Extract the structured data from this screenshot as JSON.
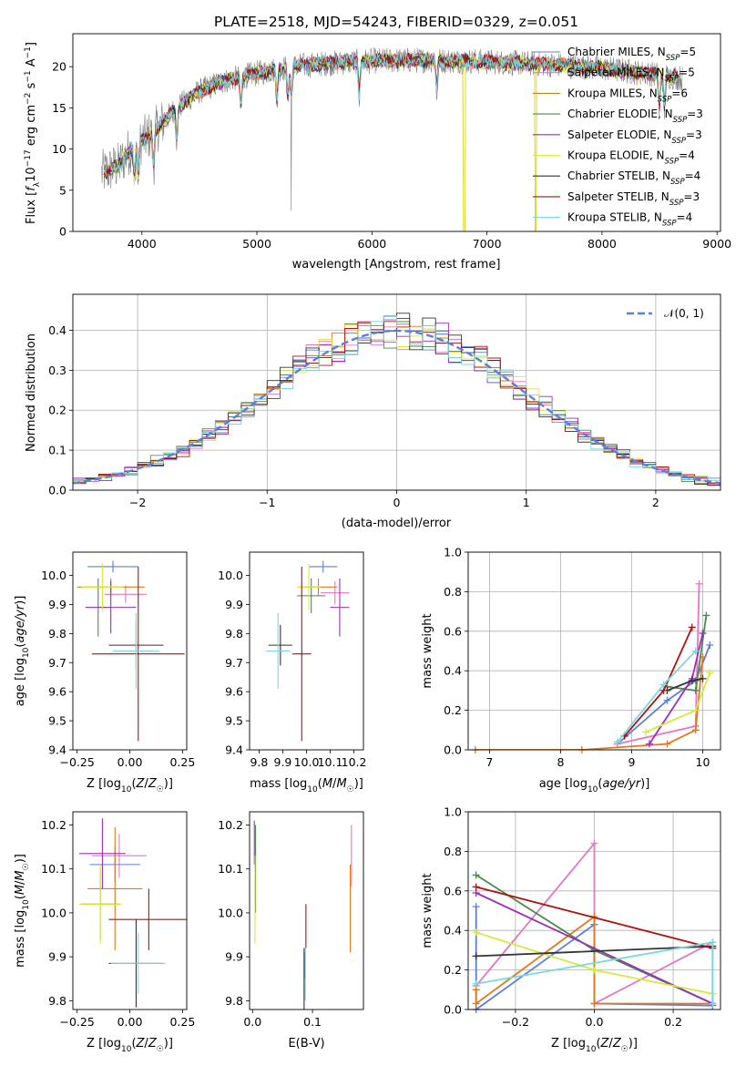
{
  "figure": {
    "title": "PLATE=2518, MJD=54243, FIBERID=0329, z=0.051"
  },
  "models": [
    {
      "name": "Chabrier MILES",
      "nssp": "5",
      "color": "#5b7fdc"
    },
    {
      "name": "Salpeter MILES",
      "nssp": "5",
      "color": "#e377c2"
    },
    {
      "name": "Kroupa MILES",
      "nssp": "6",
      "color": "#e3771c"
    },
    {
      "name": "Chabrier ELODIE",
      "nssp": "3",
      "color": "#4b8a4b"
    },
    {
      "name": "Salpeter ELODIE",
      "nssp": "3",
      "color": "#9b2fb8"
    },
    {
      "name": "Kroupa ELODIE",
      "nssp": "4",
      "color": "#d4ea3c"
    },
    {
      "name": "Chabrier STELIB",
      "nssp": "4",
      "color": "#333333"
    },
    {
      "name": "Salpeter STELIB",
      "nssp": "3",
      "color": "#b01010"
    },
    {
      "name": "Kroupa STELIB",
      "nssp": "4",
      "color": "#7ad8dc"
    }
  ],
  "chart_data": [
    {
      "id": "spectrum",
      "type": "line",
      "xlabel": "wavelength [Angstrom, rest frame]",
      "ylabel": "Flux [f_λ 10^-17 erg cm^-2 s^-1 A^-1]",
      "xlim": [
        3400,
        9030
      ],
      "ylim": [
        0,
        24
      ],
      "xticks": [
        4000,
        5000,
        6000,
        7000,
        8000,
        9000
      ],
      "yticks": [
        0,
        5,
        10,
        15,
        20
      ],
      "continuum": [
        [
          3650,
          7
        ],
        [
          3800,
          8
        ],
        [
          3900,
          10
        ],
        [
          4000,
          11
        ],
        [
          4100,
          12
        ],
        [
          4200,
          13.5
        ],
        [
          4300,
          15
        ],
        [
          4400,
          16
        ],
        [
          4500,
          17
        ],
        [
          4700,
          18.2
        ],
        [
          5000,
          19.2
        ],
        [
          5300,
          20
        ],
        [
          5600,
          20.4
        ],
        [
          6000,
          20.7
        ],
        [
          6500,
          20.8
        ],
        [
          7000,
          20.6
        ],
        [
          7500,
          20.3
        ],
        [
          8000,
          19.8
        ],
        [
          8500,
          19
        ],
        [
          8700,
          18.6
        ]
      ],
      "absorption_lines": [
        3934,
        3969,
        4102,
        4304,
        4861,
        5175,
        5270,
        5300,
        5890,
        6563,
        8498,
        8542
      ],
      "data_dropouts": [
        {
          "start": 6795,
          "end": 6810
        },
        {
          "start": 7420,
          "end": 7430
        }
      ],
      "grid": false
    },
    {
      "id": "residuals",
      "type": "histogram",
      "xlabel": "(data-model)/error",
      "ylabel": "Normed distribution",
      "xlim": [
        -2.5,
        2.5
      ],
      "ylim": [
        0,
        0.49
      ],
      "xticks": [
        -2,
        -1,
        0,
        1,
        2
      ],
      "yticks": [
        0.0,
        0.1,
        0.2,
        0.3,
        0.4
      ],
      "bin_width": 0.1,
      "reference_curve": {
        "label": "𝒩(0, 1)",
        "mean": 0,
        "sigma": 1,
        "color": "#5b7fdc"
      },
      "legend": "top-right",
      "grid": true
    },
    {
      "id": "age-vs-z",
      "type": "errorbar",
      "xlabel": "Z [log10(Z/Z☉)]",
      "ylabel": "age [log10(age/yr)]",
      "xlim": [
        -0.27,
        0.27
      ],
      "ylim": [
        9.4,
        10.08
      ],
      "xticks": [
        -0.25,
        0,
        0.25
      ],
      "xtick_labels": [
        "−0.25",
        "0.00",
        "0.25"
      ],
      "yticks": [
        9.4,
        9.5,
        9.6,
        9.7,
        9.8,
        9.9,
        10.0
      ],
      "grid": false,
      "points": [
        {
          "model": 0,
          "x": -0.08,
          "xerr": 0.12,
          "y": 10.03,
          "yerr": 0.02
        },
        {
          "model": 1,
          "x": -0.02,
          "xerr": 0.1,
          "y": 9.935,
          "yerr": 0.03
        },
        {
          "model": 2,
          "x": -0.09,
          "xerr": 0.16,
          "y": 9.96,
          "yerr": 0.03
        },
        {
          "model": 3,
          "x": -0.15,
          "xerr": 0.06,
          "y": 9.89,
          "yerr": 0.1
        },
        {
          "model": 4,
          "x": -0.09,
          "xerr": 0.12,
          "y": 9.89,
          "yerr": 0.09
        },
        {
          "model": 5,
          "x": -0.13,
          "xerr": 0.1,
          "y": 9.96,
          "yerr": 0.08
        },
        {
          "model": 6,
          "x": 0.03,
          "xerr": 0.13,
          "y": 9.76,
          "yerr": 0.08
        },
        {
          "model": 7,
          "x": 0.04,
          "xerr": 0.22,
          "y": 9.73,
          "yerr": 0.3
        },
        {
          "model": 8,
          "x": 0.03,
          "xerr": 0.11,
          "y": 9.74,
          "yerr": 0.13
        }
      ]
    },
    {
      "id": "age-vs-mass",
      "type": "errorbar",
      "xlabel": "mass [log10(M/M☉)]",
      "xlim": [
        9.76,
        10.24
      ],
      "ylim": [
        9.4,
        10.08
      ],
      "xticks": [
        9.8,
        9.9,
        10.0,
        10.1,
        10.2
      ],
      "yticks": [
        9.4,
        9.5,
        9.6,
        9.7,
        9.8,
        9.9,
        10.0
      ],
      "grid": false,
      "points": [
        {
          "model": 0,
          "x": 10.07,
          "xerr": 0.06,
          "y": 10.03,
          "yerr": 0.02
        },
        {
          "model": 1,
          "x": 10.12,
          "xerr": 0.06,
          "y": 9.94,
          "yerr": 0.04
        },
        {
          "model": 2,
          "x": 10.05,
          "xerr": 0.08,
          "y": 9.96,
          "yerr": 0.03
        },
        {
          "model": 3,
          "x": 10.02,
          "xerr": 0.06,
          "y": 9.93,
          "yerr": 0.06
        },
        {
          "model": 4,
          "x": 10.14,
          "xerr": 0.04,
          "y": 9.89,
          "yerr": 0.1
        },
        {
          "model": 5,
          "x": 10.01,
          "xerr": 0.05,
          "y": 9.96,
          "yerr": 0.08
        },
        {
          "model": 6,
          "x": 9.89,
          "xerr": 0.05,
          "y": 9.76,
          "yerr": 0.07
        },
        {
          "model": 7,
          "x": 9.98,
          "xerr": 0.04,
          "y": 9.73,
          "yerr": 0.3
        },
        {
          "model": 8,
          "x": 9.88,
          "xerr": 0.05,
          "y": 9.74,
          "yerr": 0.13
        }
      ]
    },
    {
      "id": "weight-vs-age",
      "type": "line",
      "xlabel": "age [log10(age/yr)]",
      "ylabel": "mass weight",
      "xlim": [
        6.7,
        10.25
      ],
      "ylim": [
        0,
        1.0
      ],
      "xticks": [
        7,
        8,
        9,
        10
      ],
      "yticks": [
        0.0,
        0.2,
        0.4,
        0.6,
        0.8,
        1.0
      ],
      "grid": true,
      "series": [
        {
          "model": 0,
          "x": [
            8.8,
            9.5,
            9.9,
            10.1
          ],
          "y": [
            0.03,
            0.25,
            0.35,
            0.53
          ]
        },
        {
          "model": 1,
          "x": [
            8.8,
            9.9,
            9.95
          ],
          "y": [
            0.03,
            0.12,
            0.84
          ]
        },
        {
          "model": 2,
          "x": [
            6.8,
            8.3,
            9.5,
            9.9,
            10.0
          ],
          "y": [
            0.0,
            0.0,
            0.03,
            0.1,
            0.47
          ]
        },
        {
          "model": 3,
          "x": [
            9.5,
            9.9,
            10.05
          ],
          "y": [
            0.32,
            0.3,
            0.68
          ]
        },
        {
          "model": 4,
          "x": [
            9.25,
            9.85,
            10.0
          ],
          "y": [
            0.03,
            0.36,
            0.59
          ]
        },
        {
          "model": 5,
          "x": [
            9.2,
            9.9,
            10.1
          ],
          "y": [
            0.09,
            0.2,
            0.39
          ]
        },
        {
          "model": 6,
          "x": [
            9.5,
            9.85,
            10.0
          ],
          "y": [
            0.3,
            0.35,
            0.36
          ]
        },
        {
          "model": 7,
          "x": [
            8.9,
            9.45,
            9.85
          ],
          "y": [
            0.07,
            0.3,
            0.62
          ]
        },
        {
          "model": 8,
          "x": [
            8.8,
            9.45,
            9.9
          ],
          "y": [
            0.04,
            0.33,
            0.5
          ]
        }
      ]
    },
    {
      "id": "mass-vs-z",
      "type": "errorbar",
      "xlabel": "Z [log10(Z/Z☉)]",
      "ylabel": "mass [log10(M/M☉)]",
      "xlim": [
        -0.27,
        0.27
      ],
      "ylim": [
        9.78,
        10.23
      ],
      "xticks": [
        -0.25,
        0,
        0.25
      ],
      "xtick_labels": [
        "−0.25",
        "0.00",
        "0.25"
      ],
      "yticks": [
        9.8,
        9.9,
        10.0,
        10.1,
        10.2
      ],
      "grid": false,
      "points": [
        {
          "model": 0,
          "x": -0.07,
          "xerr": 0.12,
          "y": 10.11,
          "yerr": 0.04
        },
        {
          "model": 1,
          "x": -0.05,
          "xerr": 0.13,
          "y": 10.13,
          "yerr": 0.05
        },
        {
          "model": 2,
          "x": -0.07,
          "xerr": 0.13,
          "y": 10.055,
          "yerr": 0.14
        },
        {
          "model": 3,
          "x": -0.14,
          "xerr": 0.09,
          "y": 10.02,
          "yerr": 0.08
        },
        {
          "model": 4,
          "x": -0.13,
          "xerr": 0.11,
          "y": 10.135,
          "yerr": 0.08
        },
        {
          "model": 5,
          "x": -0.14,
          "xerr": 0.1,
          "y": 10.02,
          "yerr": 0.09
        },
        {
          "model": 6,
          "x": 0.03,
          "xerr": 0.13,
          "y": 9.885,
          "yerr": 0.1
        },
        {
          "model": 7,
          "x": 0.09,
          "xerr": 0.19,
          "y": 9.985,
          "yerr": 0.07
        },
        {
          "model": 8,
          "x": 0.04,
          "xerr": 0.13,
          "y": 9.885,
          "yerr": 0.07
        }
      ]
    },
    {
      "id": "mass-vs-ebv",
      "type": "errorbar",
      "xlabel": "E(B-V)",
      "xlim": [
        -0.005,
        0.185
      ],
      "ylim": [
        9.78,
        10.23
      ],
      "xticks": [
        0.0,
        0.1
      ],
      "yticks": [
        9.8,
        9.9,
        10.0,
        10.1,
        10.2
      ],
      "grid": false,
      "points": [
        {
          "model": 0,
          "x": 0.087,
          "xerr": 0.0,
          "y": 9.88,
          "yerr": 0.03
        },
        {
          "model": 1,
          "x": 0.165,
          "xerr": 0.0,
          "y": 10.13,
          "yerr": 0.07
        },
        {
          "model": 2,
          "x": 0.163,
          "xerr": 0.0,
          "y": 10.01,
          "yerr": 0.1
        },
        {
          "model": 3,
          "x": 0.005,
          "xerr": 0.0,
          "y": 10.1,
          "yerr": 0.1
        },
        {
          "model": 4,
          "x": 0.003,
          "xerr": 0.0,
          "y": 10.16,
          "yerr": 0.05
        },
        {
          "model": 5,
          "x": 0.004,
          "xerr": 0.0,
          "y": 10.03,
          "yerr": 0.1
        },
        {
          "model": 6,
          "x": 0.086,
          "xerr": 0.0,
          "y": 9.85,
          "yerr": 0.07
        },
        {
          "model": 7,
          "x": 0.089,
          "xerr": 0.0,
          "y": 9.97,
          "yerr": 0.05
        },
        {
          "model": 8,
          "x": 0.088,
          "xerr": 0.0,
          "y": 9.86,
          "yerr": 0.06
        }
      ]
    },
    {
      "id": "weight-vs-z",
      "type": "line",
      "xlabel": "Z [log10(Z/Z☉)]",
      "ylabel": "mass weight",
      "xlim": [
        -0.32,
        0.32
      ],
      "ylim": [
        0,
        1.0
      ],
      "xticks": [
        -0.2,
        0.0,
        0.2
      ],
      "xtick_labels": [
        "−0.2",
        "0.0",
        "0.2"
      ],
      "yticks": [
        0.0,
        0.2,
        0.4,
        0.6,
        0.8,
        1.0
      ],
      "grid": true,
      "series": [
        {
          "model": 0,
          "x": [
            -0.3,
            -0.3,
            0.0,
            0.0,
            0.3
          ],
          "y": [
            0.52,
            0.0,
            0.43,
            0.03,
            0.02
          ]
        },
        {
          "model": 1,
          "x": [
            -0.3,
            0.0,
            0.0,
            0.3,
            0.3
          ],
          "y": [
            0.12,
            0.84,
            0.03,
            0.34,
            0.03
          ]
        },
        {
          "model": 2,
          "x": [
            -0.3,
            -0.3,
            0.0,
            0.0,
            0.3
          ],
          "y": [
            0.1,
            0.03,
            0.47,
            0.03,
            0.03
          ]
        },
        {
          "model": 3,
          "x": [
            -0.3,
            0.0,
            0.3
          ],
          "y": [
            0.68,
            0.3,
            0.03
          ]
        },
        {
          "model": 4,
          "x": [
            -0.3,
            0.3
          ],
          "y": [
            0.59,
            0.03
          ]
        },
        {
          "model": 5,
          "x": [
            -0.3,
            0.0,
            0.3
          ],
          "y": [
            0.39,
            0.2,
            0.08
          ]
        },
        {
          "model": 6,
          "x": [
            -0.3,
            0.3
          ],
          "y": [
            0.27,
            0.32
          ]
        },
        {
          "model": 7,
          "x": [
            -0.3,
            0.3
          ],
          "y": [
            0.62,
            0.31
          ]
        },
        {
          "model": 8,
          "x": [
            -0.3,
            0.3,
            0.3
          ],
          "y": [
            0.13,
            0.34,
            0.03
          ]
        }
      ]
    }
  ]
}
